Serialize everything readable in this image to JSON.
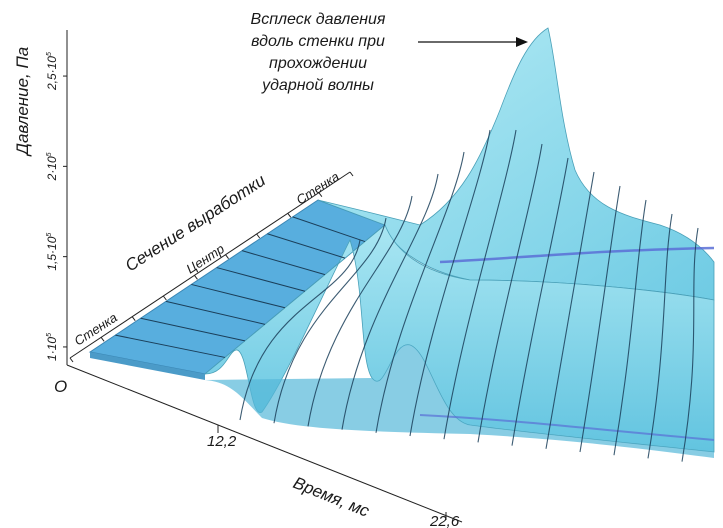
{
  "chart_data": {
    "type": "surface",
    "ylabel": "Давление, Па",
    "xlabel": "Время, мс",
    "zlabel": "Сечение выработки",
    "origin_label": "O",
    "pressure_ticks": [
      {
        "mantissa": "1·10",
        "exp": "5",
        "value": 100000
      },
      {
        "mantissa": "1,5·10",
        "exp": "5",
        "value": 150000
      },
      {
        "mantissa": "2·10",
        "exp": "5",
        "value": 200000
      },
      {
        "mantissa": "2,5·10",
        "exp": "5",
        "value": 250000
      }
    ],
    "time_ticks": [
      "12,2",
      "22,6"
    ],
    "section_labels": {
      "wall_near": "Стенка",
      "center": "Центр",
      "wall_far": "Стенка"
    },
    "annotation": [
      "Всплеск давления",
      "вдоль стенки при",
      "прохождении",
      "ударной волны"
    ],
    "surface_color": "#86d8ea",
    "surface_edge_color": "#3d8fa6",
    "wave_line_color": "#1b3f5a",
    "trough_color": "#5a6fd6",
    "plane_color": "#4f9fd0"
  }
}
